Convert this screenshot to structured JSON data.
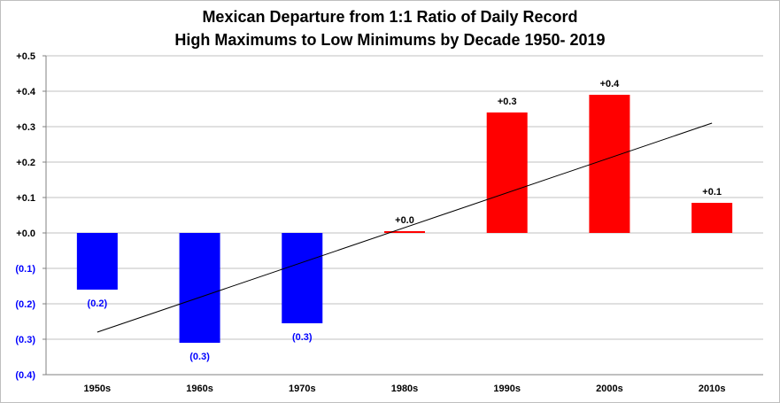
{
  "chart_data": {
    "type": "bar",
    "title_lines": [
      "Mexican Departure from 1:1 Ratio of Daily Record",
      "High Maximums to Low Minimums by Decade 1950- 2019"
    ],
    "categories": [
      "1950s",
      "1960s",
      "1970s",
      "1980s",
      "1990s",
      "2000s",
      "2010s"
    ],
    "values": [
      -0.16,
      -0.31,
      -0.255,
      0.005,
      0.34,
      0.39,
      0.085
    ],
    "data_labels": [
      "(0.2)",
      "(0.3)",
      "(0.3)",
      "+0.0",
      "+0.3",
      "+0.4",
      "+0.1"
    ],
    "ylim": [
      -0.4,
      0.5
    ],
    "yticks": [
      0.5,
      0.4,
      0.3,
      0.2,
      0.1,
      0.0,
      -0.1,
      -0.2,
      -0.3,
      -0.4
    ],
    "ytick_labels": [
      "+0.5",
      "+0.4",
      "+0.3",
      "+0.2",
      "+0.1",
      "+0.0",
      "(0.1)",
      "(0.2)",
      "(0.3)",
      "(0.4)"
    ],
    "grid": true,
    "trendline": {
      "type": "linear",
      "start": -0.28,
      "end": 0.31
    },
    "colors": {
      "positive": "#ff0000",
      "negative": "#0000ff",
      "grid": "#c0c0c0",
      "trend": "#000000",
      "text": "#000000"
    }
  }
}
